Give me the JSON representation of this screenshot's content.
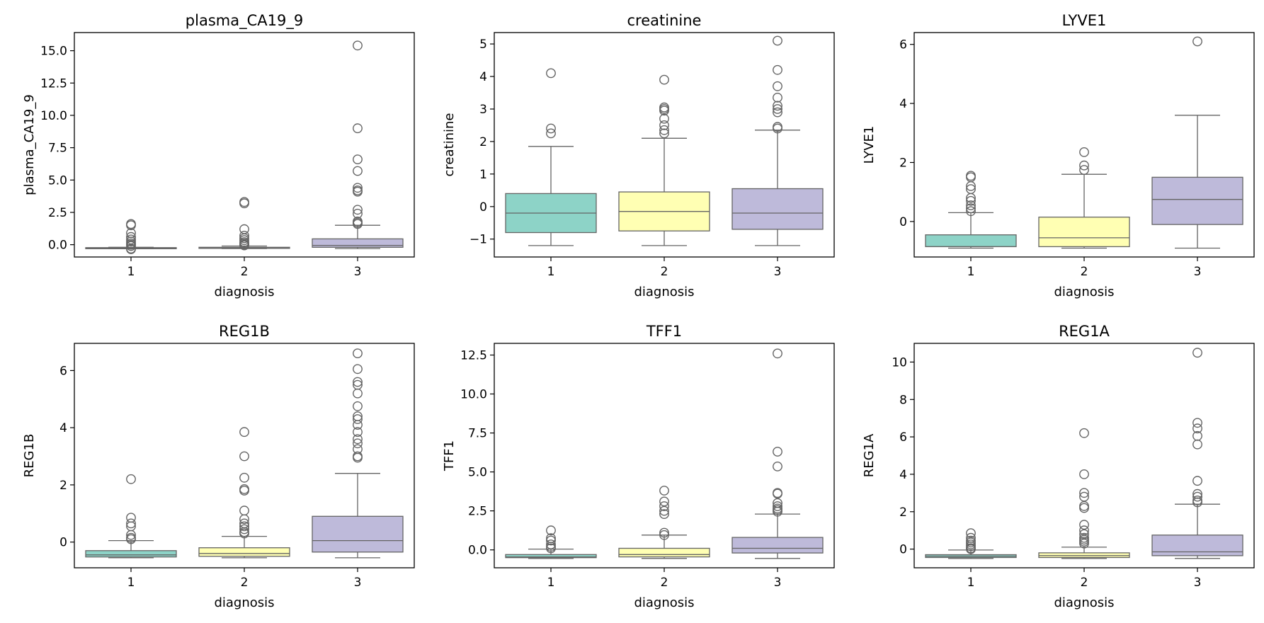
{
  "figure": {
    "background": "#ffffff",
    "palette": [
      "#8dd3c7",
      "#ffffb3",
      "#bebada"
    ],
    "line_color": "#646464"
  },
  "chart_data": [
    {
      "type": "box",
      "title": "plasma_CA19_9",
      "xlabel": "diagnosis",
      "ylabel": "plasma_CA19_9",
      "categories": [
        "1",
        "2",
        "3"
      ],
      "ylim": [
        -0.95,
        16.4
      ],
      "yticks": [
        0.0,
        2.5,
        5.0,
        7.5,
        10.0,
        12.5,
        15.0
      ],
      "ytick_labels": [
        "0.0",
        "2.5",
        "5.0",
        "7.5",
        "10.0",
        "12.5",
        "15.0"
      ],
      "grid": false,
      "boxes": [
        {
          "category": "1",
          "whislo": -0.3,
          "q1": -0.28,
          "med": -0.26,
          "q3": -0.23,
          "whishi": -0.2,
          "fliers": [
            1.6,
            1.5,
            0.9,
            0.6,
            0.4,
            0.25,
            0.1,
            0.0,
            -0.1,
            -0.3,
            -0.35
          ]
        },
        {
          "category": "2",
          "whislo": -0.3,
          "q1": -0.28,
          "med": -0.25,
          "q3": -0.2,
          "whishi": -0.1,
          "fliers": [
            3.3,
            3.2,
            1.2,
            0.7,
            0.5,
            0.35,
            0.2,
            0.1,
            0.0,
            -0.05
          ]
        },
        {
          "category": "3",
          "whislo": -0.3,
          "q1": -0.2,
          "med": -0.05,
          "q3": 0.45,
          "whishi": 1.5,
          "fliers": [
            15.4,
            9.0,
            6.6,
            5.7,
            4.4,
            4.2,
            4.1,
            2.7,
            2.4,
            1.8,
            1.7,
            1.6
          ]
        }
      ]
    },
    {
      "type": "box",
      "title": "creatinine",
      "xlabel": "diagnosis",
      "ylabel": "creatinine",
      "categories": [
        "1",
        "2",
        "3"
      ],
      "ylim": [
        -1.55,
        5.35
      ],
      "yticks": [
        -1,
        0,
        1,
        2,
        3,
        4,
        5
      ],
      "ytick_labels": [
        "−1",
        "0",
        "1",
        "2",
        "3",
        "4",
        "5"
      ],
      "grid": false,
      "boxes": [
        {
          "category": "1",
          "whislo": -1.2,
          "q1": -0.8,
          "med": -0.2,
          "q3": 0.4,
          "whishi": 1.85,
          "fliers": [
            4.1,
            2.4,
            2.25
          ]
        },
        {
          "category": "2",
          "whislo": -1.2,
          "q1": -0.75,
          "med": -0.15,
          "q3": 0.45,
          "whishi": 2.1,
          "fliers": [
            3.9,
            3.05,
            3.0,
            2.95,
            2.7,
            2.5,
            2.35,
            2.25
          ]
        },
        {
          "category": "3",
          "whislo": -1.2,
          "q1": -0.7,
          "med": -0.2,
          "q3": 0.55,
          "whishi": 2.35,
          "fliers": [
            5.1,
            4.2,
            3.7,
            3.35,
            3.1,
            3.0,
            2.9,
            2.45,
            2.4
          ]
        }
      ]
    },
    {
      "type": "box",
      "title": "LYVE1",
      "xlabel": "diagnosis",
      "ylabel": "LYVE1",
      "categories": [
        "1",
        "2",
        "3"
      ],
      "ylim": [
        -1.2,
        6.4
      ],
      "yticks": [
        0,
        2,
        4,
        6
      ],
      "ytick_labels": [
        "0",
        "2",
        "4",
        "6"
      ],
      "grid": false,
      "boxes": [
        {
          "category": "1",
          "whislo": -0.9,
          "q1": -0.85,
          "med": -0.85,
          "q3": -0.45,
          "whishi": 0.3,
          "fliers": [
            1.55,
            1.5,
            1.2,
            1.1,
            0.8,
            0.7,
            0.55,
            0.45,
            0.35
          ]
        },
        {
          "category": "2",
          "whislo": -0.9,
          "q1": -0.85,
          "med": -0.55,
          "q3": 0.15,
          "whishi": 1.6,
          "fliers": [
            2.35,
            1.9,
            1.75
          ]
        },
        {
          "category": "3",
          "whislo": -0.9,
          "q1": -0.1,
          "med": 0.75,
          "q3": 1.5,
          "whishi": 3.6,
          "fliers": [
            6.1
          ]
        }
      ]
    },
    {
      "type": "box",
      "title": "REG1B",
      "xlabel": "diagnosis",
      "ylabel": "REG1B",
      "categories": [
        "1",
        "2",
        "3"
      ],
      "ylim": [
        -0.9,
        6.95
      ],
      "yticks": [
        0,
        2,
        4,
        6
      ],
      "ytick_labels": [
        "0",
        "2",
        "4",
        "6"
      ],
      "grid": false,
      "boxes": [
        {
          "category": "1",
          "whislo": -0.55,
          "q1": -0.52,
          "med": -0.45,
          "q3": -0.3,
          "whishi": 0.05,
          "fliers": [
            2.2,
            0.85,
            0.65,
            0.55,
            0.25,
            0.15,
            0.1
          ]
        },
        {
          "category": "2",
          "whislo": -0.55,
          "q1": -0.5,
          "med": -0.4,
          "q3": -0.2,
          "whishi": 0.2,
          "fliers": [
            3.85,
            3.0,
            2.25,
            1.85,
            1.8,
            1.1,
            0.8,
            0.65,
            0.55,
            0.45,
            0.35,
            0.3
          ]
        },
        {
          "category": "3",
          "whislo": -0.55,
          "q1": -0.35,
          "med": 0.05,
          "q3": 0.9,
          "whishi": 2.4,
          "fliers": [
            6.6,
            6.05,
            5.6,
            5.5,
            5.2,
            4.75,
            4.4,
            4.3,
            4.1,
            3.85,
            3.6,
            3.45,
            3.25,
            3.0,
            2.95
          ]
        }
      ]
    },
    {
      "type": "box",
      "title": "TFF1",
      "xlabel": "diagnosis",
      "ylabel": "TFF1",
      "categories": [
        "1",
        "2",
        "3"
      ],
      "ylim": [
        -1.15,
        13.25
      ],
      "yticks": [
        0.0,
        2.5,
        5.0,
        7.5,
        10.0,
        12.5
      ],
      "ytick_labels": [
        "0.0",
        "2.5",
        "5.0",
        "7.5",
        "10.0",
        "12.5"
      ],
      "grid": false,
      "boxes": [
        {
          "category": "1",
          "whislo": -0.55,
          "q1": -0.5,
          "med": -0.45,
          "q3": -0.3,
          "whishi": 0.05,
          "fliers": [
            1.25,
            0.75,
            0.6,
            0.35,
            0.2,
            0.1
          ]
        },
        {
          "category": "2",
          "whislo": -0.55,
          "q1": -0.45,
          "med": -0.3,
          "q3": 0.1,
          "whishi": 0.95,
          "fliers": [
            3.8,
            3.1,
            2.8,
            2.5,
            2.3,
            1.1,
            0.95
          ]
        },
        {
          "category": "3",
          "whislo": -0.55,
          "q1": -0.2,
          "med": 0.1,
          "q3": 0.8,
          "whishi": 2.3,
          "fliers": [
            12.6,
            6.3,
            5.35,
            3.65,
            3.6,
            3.0,
            2.8,
            2.65,
            2.55,
            2.45
          ]
        }
      ]
    },
    {
      "type": "box",
      "title": "REG1A",
      "xlabel": "diagnosis",
      "ylabel": "REG1A",
      "categories": [
        "1",
        "2",
        "3"
      ],
      "ylim": [
        -1.0,
        11.0
      ],
      "yticks": [
        0,
        2,
        4,
        6,
        8,
        10
      ],
      "ytick_labels": [
        "0",
        "2",
        "4",
        "6",
        "8",
        "10"
      ],
      "grid": false,
      "boxes": [
        {
          "category": "1",
          "whislo": -0.5,
          "q1": -0.45,
          "med": -0.38,
          "q3": -0.3,
          "whishi": -0.05,
          "fliers": [
            0.85,
            0.6,
            0.45,
            0.35,
            0.25,
            0.15,
            0.05,
            0.0
          ]
        },
        {
          "category": "2",
          "whislo": -0.5,
          "q1": -0.45,
          "med": -0.35,
          "q3": -0.2,
          "whishi": 0.1,
          "fliers": [
            6.2,
            4.0,
            3.0,
            2.8,
            2.3,
            2.2,
            1.3,
            1.0,
            0.8,
            0.6,
            0.5,
            0.4,
            0.3
          ]
        },
        {
          "category": "3",
          "whislo": -0.5,
          "q1": -0.35,
          "med": -0.15,
          "q3": 0.75,
          "whishi": 2.4,
          "fliers": [
            10.5,
            6.75,
            6.45,
            6.05,
            5.6,
            3.65,
            2.95,
            2.8,
            2.6,
            2.5
          ]
        }
      ]
    }
  ]
}
